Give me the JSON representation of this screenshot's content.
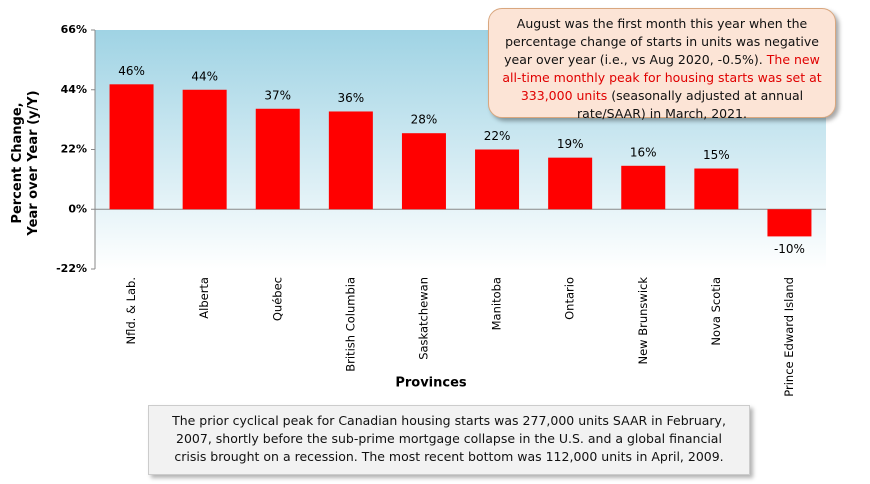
{
  "chart_data": {
    "type": "bar",
    "categories": [
      "Nfld. & Lab.",
      "Alberta",
      "Québec",
      "British Columbia",
      "Saskatchewan",
      "Manitoba",
      "Ontario",
      "New Brunswick",
      "Nova Scotia",
      "Prince Edward Island"
    ],
    "values": [
      46,
      44,
      37,
      36,
      28,
      22,
      19,
      16,
      15,
      -10
    ],
    "value_labels": [
      "46%",
      "44%",
      "37%",
      "36%",
      "28%",
      "22%",
      "19%",
      "16%",
      "15%",
      "-10%"
    ],
    "color": "#ff0000",
    "ylim": [
      -22,
      66
    ],
    "yticks": [
      {
        "value": -22,
        "label": "-22%"
      },
      {
        "value": 0,
        "label": "0%"
      },
      {
        "value": 22,
        "label": "22%"
      },
      {
        "value": 44,
        "label": "44%"
      },
      {
        "value": 66,
        "label": "66%"
      }
    ],
    "ylabel": [
      "Percent Change,",
      "Year over Year (y/Y)"
    ],
    "xlabel": "Provinces",
    "annotation": [
      "August was the first month this year when the percentage change of starts in units was negative year over year (i.e., vs Aug 2020, -0.5%).",
      "The new all-time monthly peak for housing starts was set at 333,000 units",
      "(seasonally adjusted at annual rate/SAAR) in March, 2021."
    ],
    "footnote": "The prior cyclical peak for Canadian housing starts was 277,000 units SAAR in February, 2007, shortly before the sub-prime mortgage collapse in the U.S. and a global financial crisis brought on a recession. The most recent bottom was 112,000 units in April, 2009."
  }
}
